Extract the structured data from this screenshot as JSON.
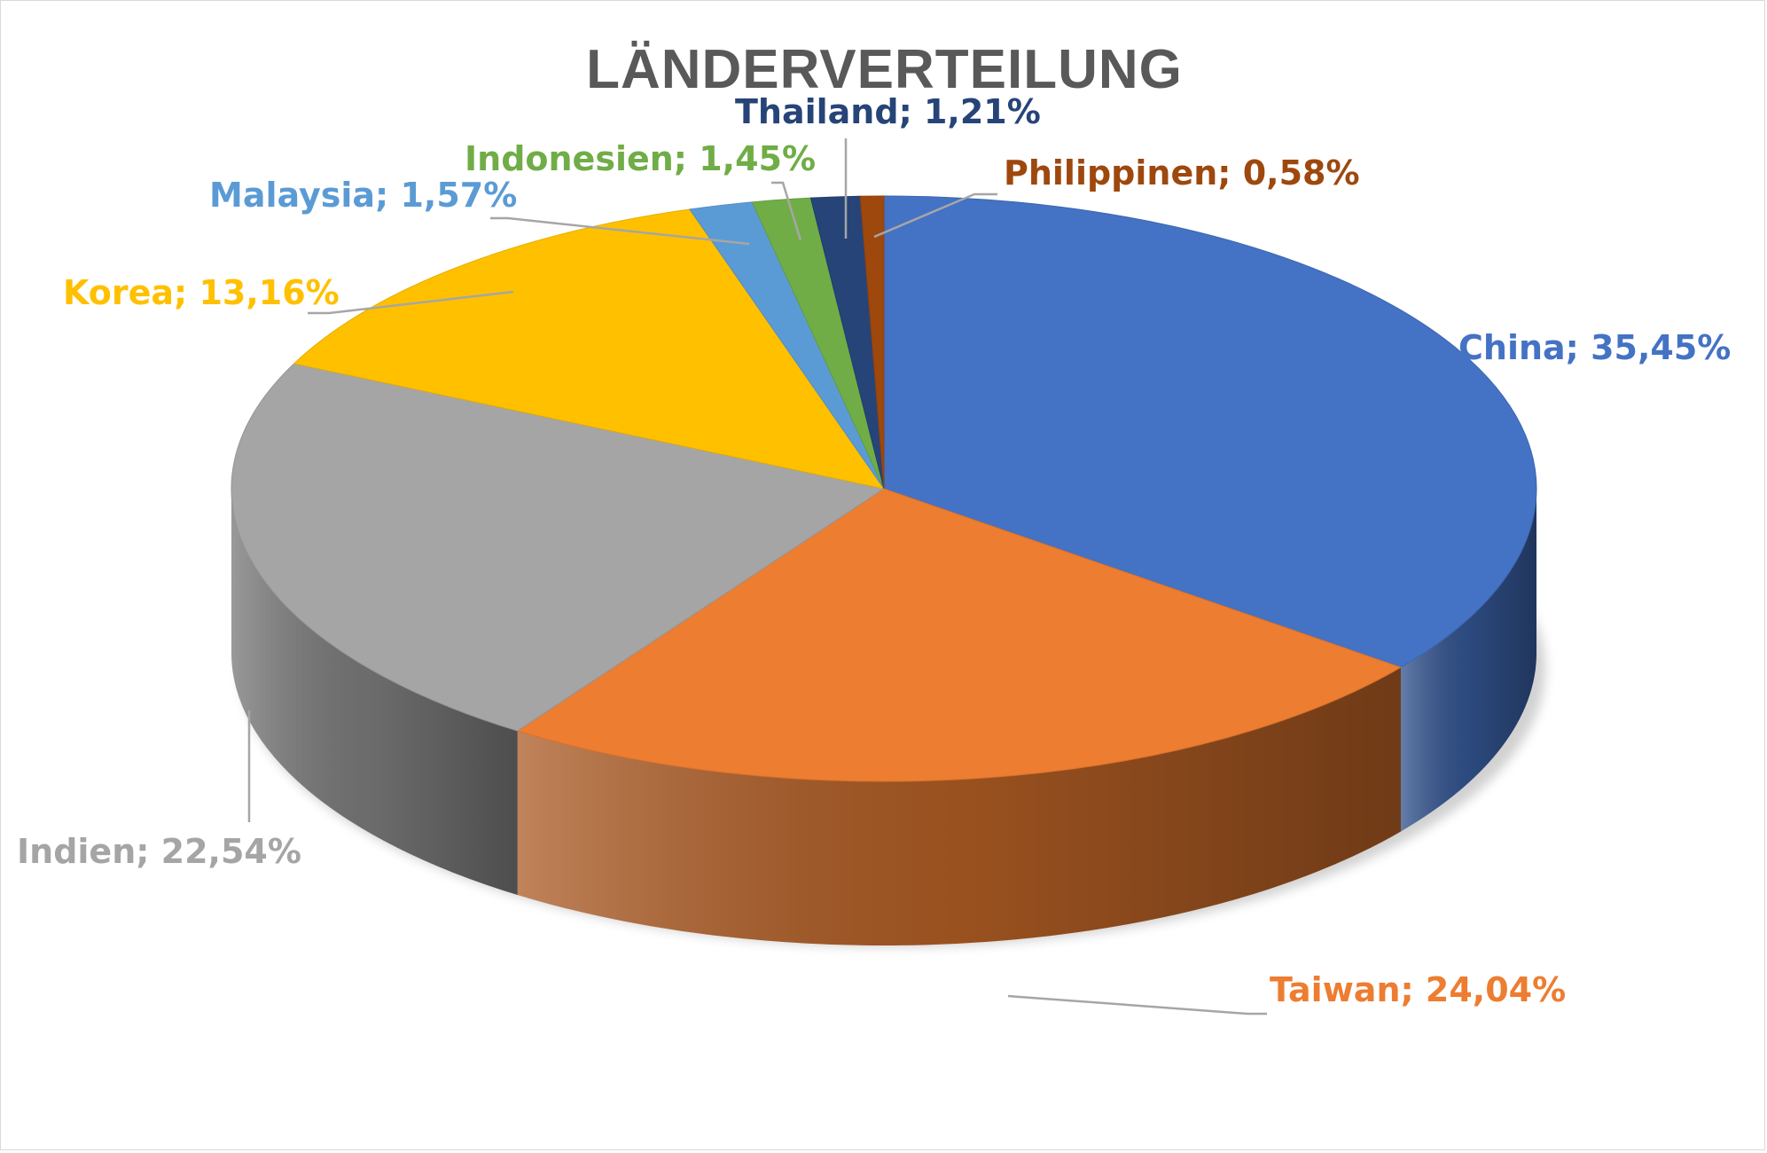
{
  "chart_data": {
    "type": "pie",
    "title": "LÄNDERVERTEILUNG",
    "style": "3d",
    "legend": "none",
    "slices": [
      {
        "name": "China",
        "value": 35.45,
        "label": "China; 35,45%",
        "color": "#4472C4"
      },
      {
        "name": "Taiwan",
        "value": 24.04,
        "label": "Taiwan; 24,04%",
        "color": "#ED7D31"
      },
      {
        "name": "Indien",
        "value": 22.54,
        "label": "Indien; 22,54%",
        "color": "#A5A5A5"
      },
      {
        "name": "Korea",
        "value": 13.16,
        "label": "Korea; 13,16%",
        "color": "#FFC000"
      },
      {
        "name": "Malaysia",
        "value": 1.57,
        "label": "Malaysia; 1,57%",
        "color": "#5B9BD5"
      },
      {
        "name": "Indonesien",
        "value": 1.45,
        "label": "Indonesien; 1,45%",
        "color": "#70AD47"
      },
      {
        "name": "Thailand",
        "value": 1.21,
        "label": "Thailand; 1,21%",
        "color": "#264478"
      },
      {
        "name": "Philippinen",
        "value": 0.58,
        "label": "Philippinen; 0,58%",
        "color": "#9E480E"
      }
    ]
  }
}
